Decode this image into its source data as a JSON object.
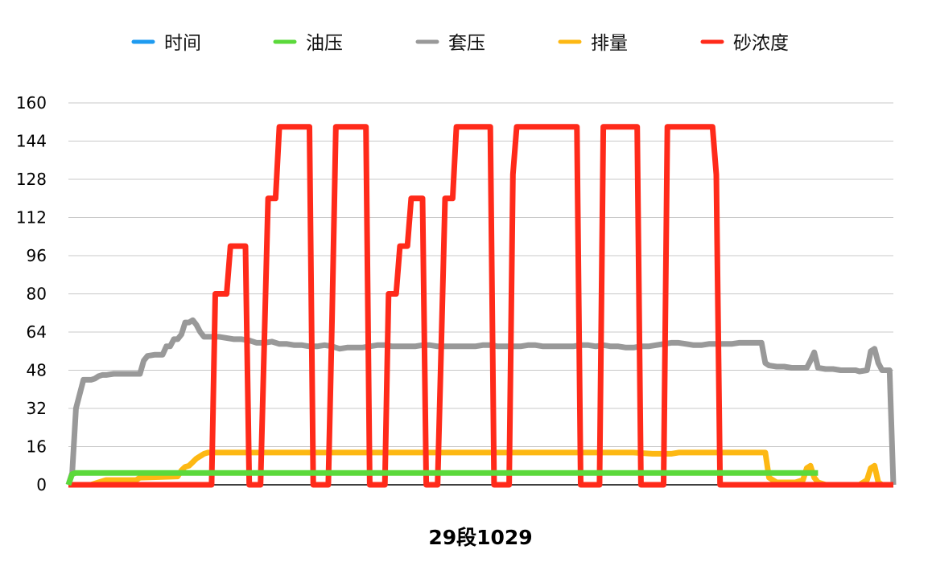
{
  "chart_data": {
    "type": "line",
    "xlabel": "29段1029",
    "ylim": [
      0,
      160
    ],
    "y_ticks": [
      0,
      16,
      32,
      48,
      64,
      80,
      96,
      112,
      128,
      144,
      160
    ],
    "grid": true,
    "legend_position": "top-center",
    "sample_count": 200,
    "series": [
      {
        "name": "时间",
        "color": "#1e9bf0",
        "points": []
      },
      {
        "name": "油压",
        "color": "#5bd93b",
        "points": [
          [
            0,
            0
          ],
          [
            1,
            4.5
          ],
          [
            2,
            5
          ],
          [
            199,
            5
          ]
        ]
      },
      {
        "name": "套压",
        "color": "#999999",
        "points": [
          [
            0,
            0
          ],
          [
            1,
            5
          ],
          [
            2,
            32
          ],
          [
            4,
            44
          ],
          [
            6,
            44
          ],
          [
            7,
            44.5
          ],
          [
            8,
            45.5
          ],
          [
            9,
            46
          ],
          [
            10,
            46
          ],
          [
            12,
            46.5
          ],
          [
            15,
            46.5
          ],
          [
            19,
            46.5
          ],
          [
            20,
            52
          ],
          [
            21,
            54
          ],
          [
            23,
            54.5
          ],
          [
            25,
            54.5
          ],
          [
            26,
            58
          ],
          [
            27,
            58
          ],
          [
            28,
            61
          ],
          [
            29,
            61
          ],
          [
            30,
            63
          ],
          [
            31,
            68
          ],
          [
            32,
            68
          ],
          [
            33,
            69
          ],
          [
            34,
            67
          ],
          [
            35,
            64
          ],
          [
            36,
            62
          ],
          [
            40,
            62
          ],
          [
            44,
            61
          ],
          [
            46,
            61
          ],
          [
            48,
            60.5
          ],
          [
            50,
            59.5
          ],
          [
            52,
            59.5
          ],
          [
            54,
            60
          ],
          [
            56,
            59
          ],
          [
            58,
            59
          ],
          [
            60,
            58.5
          ],
          [
            62,
            58.5
          ],
          [
            64,
            58
          ],
          [
            66,
            58
          ],
          [
            68,
            58.5
          ],
          [
            70,
            58
          ],
          [
            72,
            57
          ],
          [
            74,
            57.5
          ],
          [
            76,
            57.5
          ],
          [
            78,
            57.5
          ],
          [
            80,
            58
          ],
          [
            82,
            58.5
          ],
          [
            84,
            58.5
          ],
          [
            86,
            58
          ],
          [
            88,
            58
          ],
          [
            90,
            58
          ],
          [
            92,
            58
          ],
          [
            94,
            58.5
          ],
          [
            96,
            58.5
          ],
          [
            98,
            58
          ],
          [
            100,
            58
          ],
          [
            102,
            58
          ],
          [
            104,
            58
          ],
          [
            106,
            58
          ],
          [
            108,
            58
          ],
          [
            110,
            58.5
          ],
          [
            112,
            58.5
          ],
          [
            114,
            58
          ],
          [
            116,
            58
          ],
          [
            118,
            58
          ],
          [
            120,
            58
          ],
          [
            122,
            58.5
          ],
          [
            124,
            58.5
          ],
          [
            126,
            58
          ],
          [
            128,
            58
          ],
          [
            130,
            58
          ],
          [
            132,
            58
          ],
          [
            134,
            58
          ],
          [
            136,
            58.5
          ],
          [
            138,
            58.5
          ],
          [
            140,
            58
          ],
          [
            142,
            58.5
          ],
          [
            144,
            58
          ],
          [
            146,
            58
          ],
          [
            148,
            57.5
          ],
          [
            150,
            57.5
          ],
          [
            152,
            58
          ],
          [
            154,
            58
          ],
          [
            156,
            58.5
          ],
          [
            158,
            59
          ],
          [
            160,
            59.5
          ],
          [
            162,
            59.5
          ],
          [
            164,
            59
          ],
          [
            166,
            58.5
          ],
          [
            168,
            58.5
          ],
          [
            170,
            59
          ],
          [
            172,
            59
          ],
          [
            174,
            59
          ],
          [
            176,
            59
          ],
          [
            178,
            59.5
          ],
          [
            180,
            59.5
          ],
          [
            182,
            59.5
          ],
          [
            184,
            59.5
          ],
          [
            185,
            51
          ],
          [
            186,
            50
          ],
          [
            188,
            49.5
          ],
          [
            190,
            49.5
          ],
          [
            192,
            49
          ],
          [
            194,
            49
          ],
          [
            196,
            49
          ],
          [
            197,
            52
          ],
          [
            198,
            55.5
          ],
          [
            199,
            49
          ],
          [
            201,
            48.5
          ],
          [
            203,
            48.5
          ],
          [
            205,
            48
          ],
          [
            207,
            48
          ],
          [
            209,
            48
          ],
          [
            210,
            47.5
          ],
          [
            212,
            48
          ],
          [
            213,
            56
          ],
          [
            214,
            57
          ],
          [
            215,
            51
          ],
          [
            216,
            48
          ],
          [
            218,
            48
          ],
          [
            219,
            0
          ]
        ]
      },
      {
        "name": "排量",
        "color": "#fdb813",
        "points": [
          [
            0,
            0
          ],
          [
            6,
            0
          ],
          [
            8,
            1
          ],
          [
            10,
            2
          ],
          [
            18,
            2
          ],
          [
            19,
            3
          ],
          [
            29,
            3.5
          ],
          [
            30,
            6
          ],
          [
            31,
            7.5
          ],
          [
            32,
            8
          ],
          [
            33,
            9.5
          ],
          [
            34,
            11
          ],
          [
            35,
            12
          ],
          [
            36,
            13
          ],
          [
            37,
            13.5
          ],
          [
            150,
            13.5
          ],
          [
            155,
            13
          ],
          [
            160,
            13
          ],
          [
            162,
            13.5
          ],
          [
            184,
            13.5
          ],
          [
            185,
            13.5
          ],
          [
            186,
            3
          ],
          [
            187,
            2
          ],
          [
            188,
            1
          ],
          [
            193,
            1
          ],
          [
            195,
            2
          ],
          [
            196,
            7
          ],
          [
            197,
            8
          ],
          [
            198,
            3
          ],
          [
            199,
            1
          ],
          [
            201,
            0
          ],
          [
            210,
            0
          ],
          [
            211,
            1
          ],
          [
            212,
            2
          ],
          [
            213,
            7
          ],
          [
            214,
            8
          ],
          [
            215,
            1
          ],
          [
            216,
            0
          ],
          [
            219,
            0
          ]
        ]
      },
      {
        "name": "砂浓度",
        "color": "#ff2a1a",
        "points": [
          [
            0,
            0
          ],
          [
            38,
            0
          ],
          [
            39,
            80
          ],
          [
            41,
            80
          ],
          [
            42,
            80
          ],
          [
            43,
            100
          ],
          [
            46,
            100
          ],
          [
            47,
            100
          ],
          [
            48,
            0
          ],
          [
            51,
            0
          ],
          [
            52,
            60
          ],
          [
            53,
            120
          ],
          [
            54,
            120
          ],
          [
            55,
            120
          ],
          [
            56,
            150
          ],
          [
            63,
            150
          ],
          [
            64,
            150
          ],
          [
            65,
            0
          ],
          [
            69,
            0
          ],
          [
            70,
            70
          ],
          [
            71,
            150
          ],
          [
            79,
            150
          ],
          [
            80,
            0
          ],
          [
            84,
            0
          ],
          [
            85,
            80
          ],
          [
            87,
            80
          ],
          [
            88,
            100
          ],
          [
            90,
            100
          ],
          [
            91,
            120
          ],
          [
            94,
            120
          ],
          [
            95,
            0
          ],
          [
            98,
            0
          ],
          [
            99,
            60
          ],
          [
            100,
            120
          ],
          [
            102,
            120
          ],
          [
            103,
            150
          ],
          [
            112,
            150
          ],
          [
            113,
            0
          ],
          [
            117,
            0
          ],
          [
            118,
            130
          ],
          [
            119,
            150
          ],
          [
            135,
            150
          ],
          [
            136,
            0
          ],
          [
            141,
            0
          ],
          [
            142,
            150
          ],
          [
            151,
            150
          ],
          [
            152,
            0
          ],
          [
            158,
            0
          ],
          [
            159,
            150
          ],
          [
            171,
            150
          ],
          [
            172,
            130
          ],
          [
            173,
            0
          ],
          [
            219,
            0
          ]
        ]
      }
    ]
  }
}
